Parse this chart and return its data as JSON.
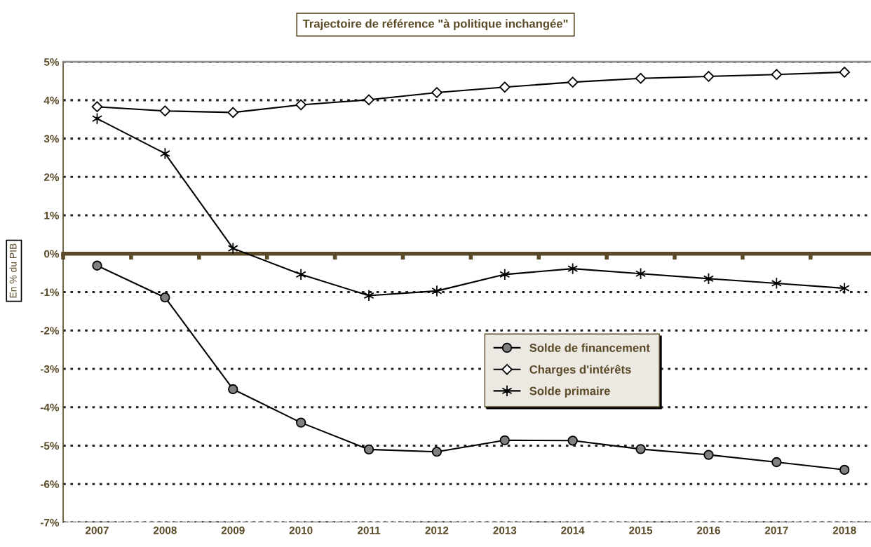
{
  "chart_data": {
    "type": "line",
    "title": "Trajectoire de référence \"à politique inchangée\"",
    "ylabel": "En % du PIB",
    "categories": [
      "2007",
      "2008",
      "2009",
      "2010",
      "2011",
      "2012",
      "2013",
      "2014",
      "2015",
      "2016",
      "2017",
      "2018"
    ],
    "series": [
      {
        "name": "Solde de financement",
        "color": "#000000",
        "marker": "circle",
        "values": [
          -0.31,
          -1.14,
          -3.53,
          -4.4,
          -5.1,
          -5.16,
          -4.86,
          -4.87,
          -5.09,
          -5.24,
          -5.43,
          -5.63
        ]
      },
      {
        "name": "Charges d'intérêts",
        "color": "#000000",
        "marker": "diamond",
        "values": [
          3.83,
          3.72,
          3.68,
          3.88,
          4.01,
          4.2,
          4.34,
          4.47,
          4.57,
          4.62,
          4.67,
          4.73
        ]
      },
      {
        "name": "Solde primaire",
        "color": "#000000",
        "marker": "cross",
        "values": [
          3.52,
          2.61,
          0.14,
          -0.54,
          -1.09,
          -0.97,
          -0.54,
          -0.39,
          -0.52,
          -0.65,
          -0.77,
          -0.9
        ]
      }
    ],
    "ylim": [
      -7,
      5
    ],
    "yticks": [
      {
        "value": -7,
        "label": "-7%"
      },
      {
        "value": -6,
        "label": "-6%"
      },
      {
        "value": -5,
        "label": "-5%"
      },
      {
        "value": -4,
        "label": "-4%"
      },
      {
        "value": -3,
        "label": "-3%"
      },
      {
        "value": -2,
        "label": "-2%"
      },
      {
        "value": -1,
        "label": "-1%"
      },
      {
        "value": 0,
        "label": "0%"
      },
      {
        "value": 1,
        "label": "1%"
      },
      {
        "value": 2,
        "label": "2%"
      },
      {
        "value": 3,
        "label": "3%"
      },
      {
        "value": 4,
        "label": "4%"
      },
      {
        "value": 5,
        "label": "5%"
      }
    ],
    "grid": "y",
    "legend": "center",
    "line_style": "solid"
  }
}
